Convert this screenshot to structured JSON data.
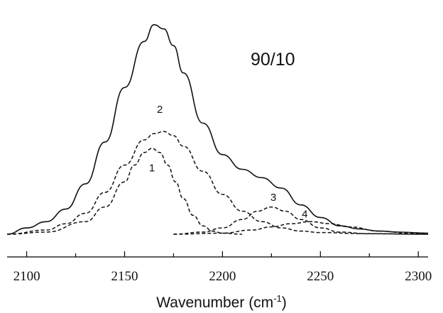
{
  "chart_data": {
    "type": "line",
    "xlabel": "Wavenumber (cm",
    "xlabel_sup": "-1",
    "xlabel_close": ")",
    "ylabel": "",
    "xlim": [
      2090,
      2305
    ],
    "ylim": [
      0,
      1.05
    ],
    "xticks": [
      2100,
      2150,
      2200,
      2250,
      2300
    ],
    "annotation": "90/10",
    "series": [
      {
        "style": "solid",
        "points": [
          [
            2090,
            0.0
          ],
          [
            2100,
            0.03
          ],
          [
            2110,
            0.06
          ],
          [
            2120,
            0.12
          ],
          [
            2130,
            0.24
          ],
          [
            2140,
            0.44
          ],
          [
            2150,
            0.7
          ],
          [
            2160,
            0.92
          ],
          [
            2165,
            1.0
          ],
          [
            2170,
            0.98
          ],
          [
            2175,
            0.9
          ],
          [
            2180,
            0.77
          ],
          [
            2190,
            0.53
          ],
          [
            2200,
            0.38
          ],
          [
            2210,
            0.31
          ],
          [
            2220,
            0.27
          ],
          [
            2230,
            0.22
          ],
          [
            2240,
            0.14
          ],
          [
            2250,
            0.08
          ],
          [
            2260,
            0.04
          ],
          [
            2270,
            0.025
          ],
          [
            2280,
            0.015
          ],
          [
            2290,
            0.01
          ],
          [
            2305,
            0.005
          ]
        ]
      },
      {
        "style": "dashed",
        "points": [
          [
            2090,
            0.0
          ],
          [
            2110,
            0.02
          ],
          [
            2120,
            0.05
          ],
          [
            2130,
            0.1
          ],
          [
            2140,
            0.2
          ],
          [
            2150,
            0.33
          ],
          [
            2160,
            0.45
          ],
          [
            2165,
            0.48
          ],
          [
            2170,
            0.49
          ],
          [
            2175,
            0.47
          ],
          [
            2180,
            0.42
          ],
          [
            2190,
            0.3
          ],
          [
            2200,
            0.19
          ],
          [
            2210,
            0.11
          ],
          [
            2220,
            0.06
          ],
          [
            2230,
            0.03
          ],
          [
            2240,
            0.015
          ],
          [
            2250,
            0.008
          ],
          [
            2270,
            0.003
          ],
          [
            2305,
            0.0
          ]
        ]
      },
      {
        "style": "dashed",
        "points": [
          [
            2090,
            0.0
          ],
          [
            2110,
            0.01
          ],
          [
            2130,
            0.06
          ],
          [
            2140,
            0.13
          ],
          [
            2150,
            0.25
          ],
          [
            2155,
            0.33
          ],
          [
            2160,
            0.39
          ],
          [
            2164,
            0.41
          ],
          [
            2168,
            0.39
          ],
          [
            2172,
            0.33
          ],
          [
            2176,
            0.25
          ],
          [
            2180,
            0.17
          ],
          [
            2185,
            0.09
          ],
          [
            2190,
            0.04
          ],
          [
            2195,
            0.015
          ],
          [
            2200,
            0.005
          ],
          [
            2210,
            0.0
          ]
        ]
      },
      {
        "style": "dashed",
        "points": [
          [
            2175,
            0.0
          ],
          [
            2190,
            0.01
          ],
          [
            2200,
            0.03
          ],
          [
            2210,
            0.07
          ],
          [
            2218,
            0.11
          ],
          [
            2225,
            0.13
          ],
          [
            2232,
            0.11
          ],
          [
            2240,
            0.07
          ],
          [
            2250,
            0.03
          ],
          [
            2260,
            0.01
          ],
          [
            2275,
            0.002
          ],
          [
            2305,
            0.0
          ]
        ]
      },
      {
        "style": "dashed",
        "points": [
          [
            2175,
            0.0
          ],
          [
            2200,
            0.005
          ],
          [
            2215,
            0.02
          ],
          [
            2225,
            0.035
          ],
          [
            2235,
            0.05
          ],
          [
            2245,
            0.06
          ],
          [
            2255,
            0.05
          ],
          [
            2265,
            0.035
          ],
          [
            2280,
            0.015
          ],
          [
            2295,
            0.005
          ],
          [
            2305,
            0.0
          ]
        ]
      }
    ],
    "peak_labels": [
      {
        "text": "1",
        "x": 2164,
        "y": 0.3
      },
      {
        "text": "2",
        "x": 2168,
        "y": 0.58
      },
      {
        "text": "3",
        "x": 2226,
        "y": 0.16
      },
      {
        "text": "4",
        "x": 2242,
        "y": 0.08
      }
    ]
  }
}
